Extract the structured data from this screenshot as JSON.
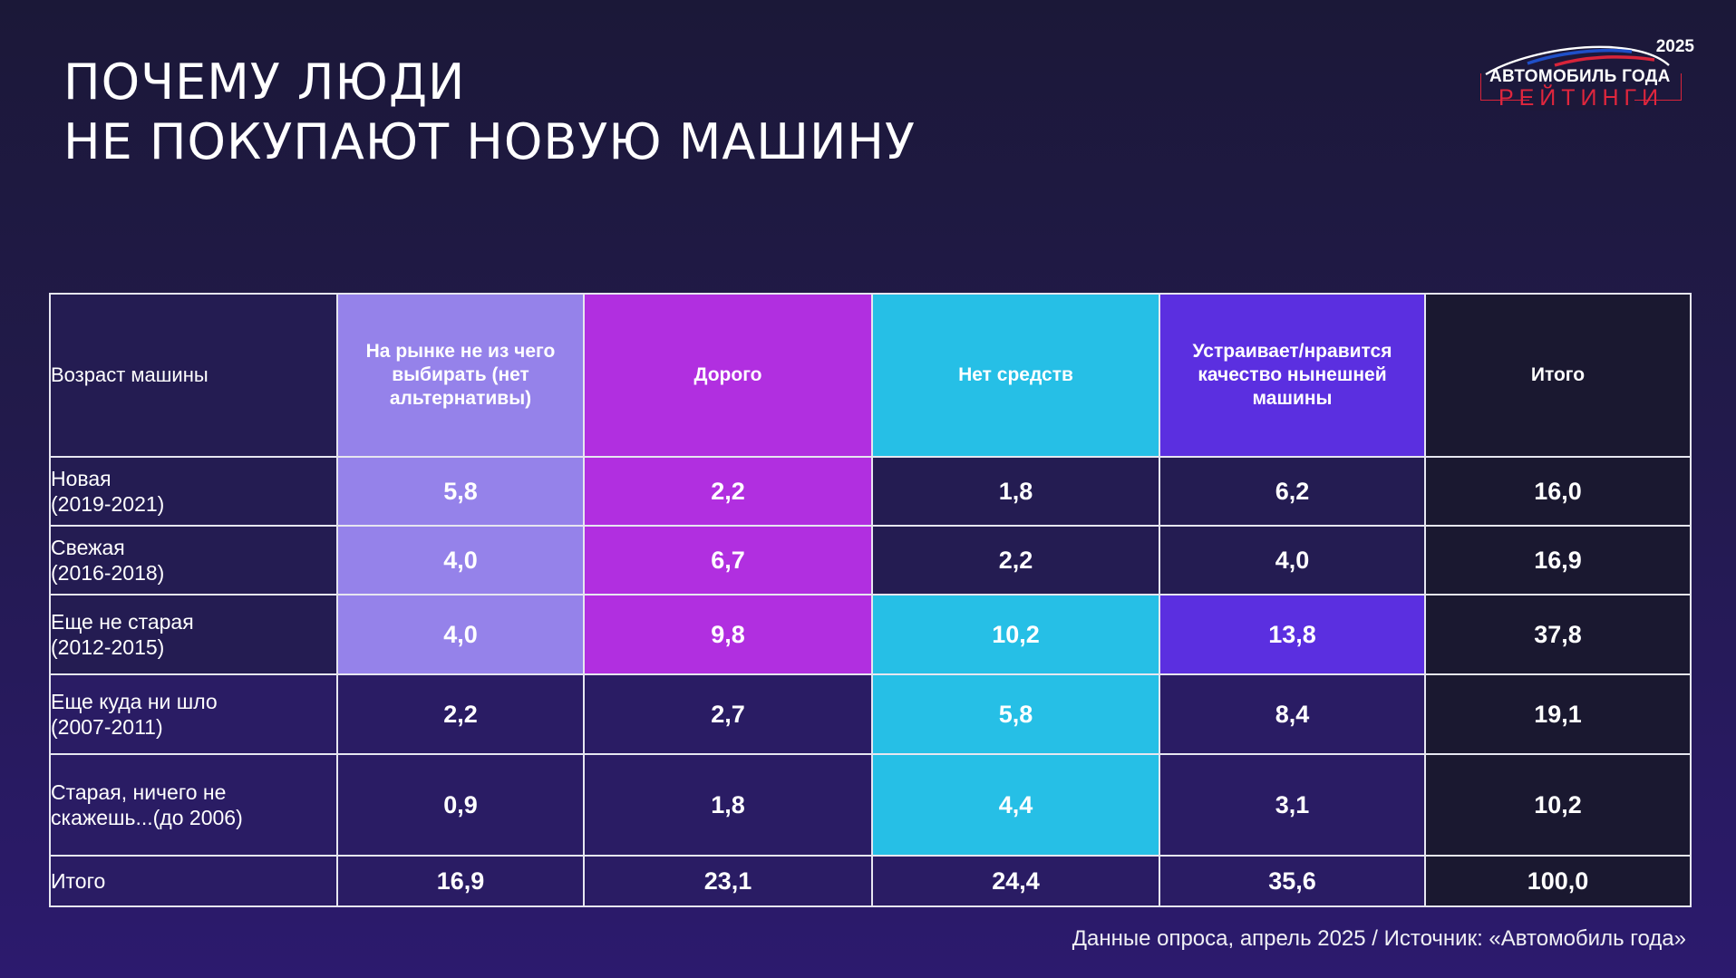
{
  "title": {
    "line1": "ПОЧЕМУ ЛЮДИ",
    "line2": "НЕ ПОКУПАЮТ НОВУЮ МАШИНУ"
  },
  "logo": {
    "year": "2025",
    "main": "АВТОМОБИЛЬ ГОДА",
    "sub": "РЕЙТИНГИ",
    "colors": {
      "accent": "#e0263d",
      "flag_blue": "#1f4fc8",
      "flag_red": "#d8243a"
    }
  },
  "chart_data": {
    "type": "table",
    "columns": [
      "Возраст машины",
      "На рынке не из чего выбирать (нет альтернативы)",
      "Дорого",
      "Нет средств",
      "Устраивает/нравится качество нынешней машины",
      "Итого"
    ],
    "rows": [
      {
        "label_line1": "Новая",
        "label_line2": "(2019-2021)",
        "values": [
          "5,8",
          "2,2",
          "1,8",
          "6,2",
          "16,0"
        ]
      },
      {
        "label_line1": "Свежая",
        "label_line2": "(2016-2018)",
        "values": [
          "4,0",
          "6,7",
          "2,2",
          "4,0",
          "16,9"
        ]
      },
      {
        "label_line1": "Еще не старая",
        "label_line2": "(2012-2015)",
        "values": [
          "4,0",
          "9,8",
          "10,2",
          "13,8",
          "37,8"
        ]
      },
      {
        "label_line1": "Еще куда ни шло",
        "label_line2": "(2007-2011)",
        "values": [
          "2,2",
          "2,7",
          "5,8",
          "8,4",
          "19,1"
        ]
      },
      {
        "label_line1": "Старая, ничего не",
        "label_line2": "скажешь...(до 2006)",
        "values": [
          "0,9",
          "1,8",
          "4,4",
          "3,1",
          "10,2"
        ]
      }
    ],
    "total_row": {
      "label": "Итого",
      "values": [
        "16,9",
        "23,1",
        "24,4",
        "35,6",
        "100,0"
      ]
    },
    "column_colors": [
      "#9582ea",
      "#b12fe0",
      "#26bfe6",
      "#5b2fe0",
      "#1a1830"
    ]
  },
  "footer": "Данные опроса, апрель 2025 / Источник: «Автомобиль года»"
}
